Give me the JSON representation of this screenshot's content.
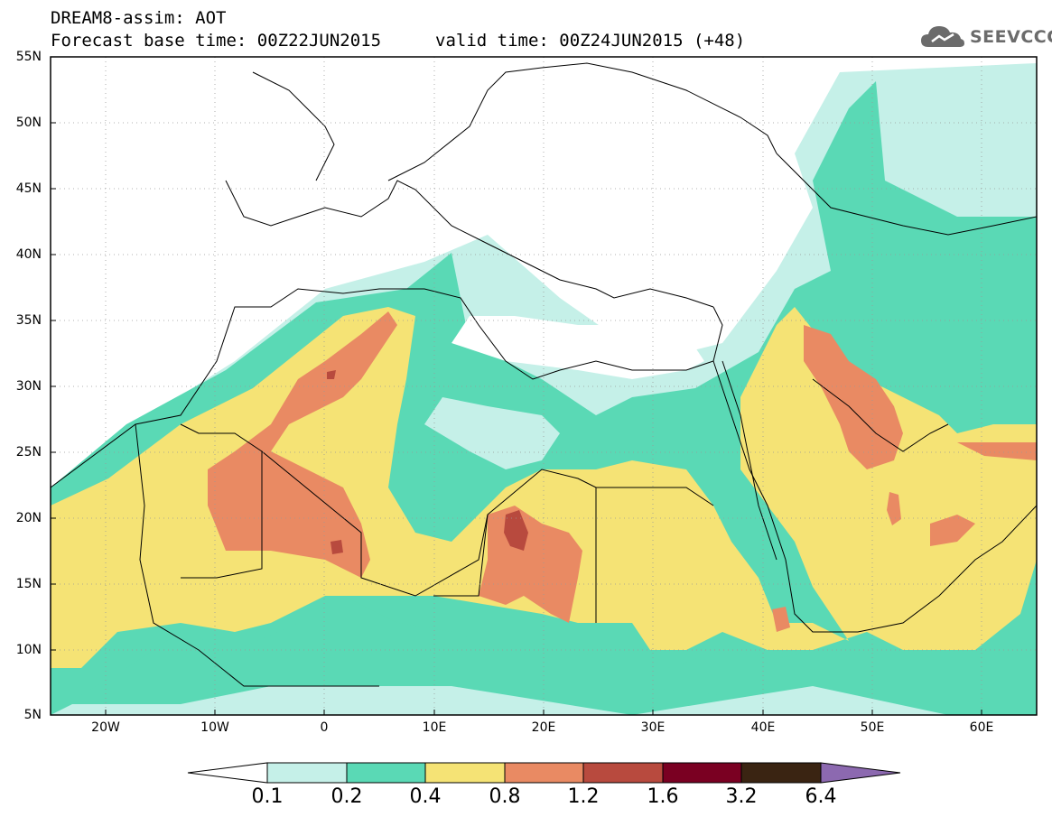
{
  "header": {
    "title_line1": "DREAM8-assim: AOT",
    "title_line2_left": "Forecast base time: 00Z22JUN2015",
    "title_line2_right": "valid time: 00Z24JUN2015 (+48)"
  },
  "logo": {
    "text": "SEEVCCC",
    "icon": "cloud-icon"
  },
  "map": {
    "variable": "Aerosol optical thickness",
    "lon_range": [
      -25,
      65
    ],
    "lat_range": [
      5,
      55
    ],
    "lat_labels": [
      "55N",
      "50N",
      "45N",
      "40N",
      "35N",
      "30N",
      "25N",
      "20N",
      "15N",
      "10N",
      "5N"
    ],
    "lon_labels": [
      "20W",
      "10W",
      "0",
      "10E",
      "20E",
      "30E",
      "40E",
      "50E",
      "60E"
    ]
  },
  "colorbar": {
    "thresholds": [
      "0.1",
      "0.2",
      "0.4",
      "0.8",
      "1.2",
      "1.6",
      "3.2",
      "6.4"
    ],
    "colors": [
      "#ffffff",
      "#c5f0e8",
      "#5ad9b5",
      "#f5e375",
      "#e98a63",
      "#b84a3e",
      "#7a0022",
      "#3a2412",
      "#8c69b0"
    ]
  }
}
